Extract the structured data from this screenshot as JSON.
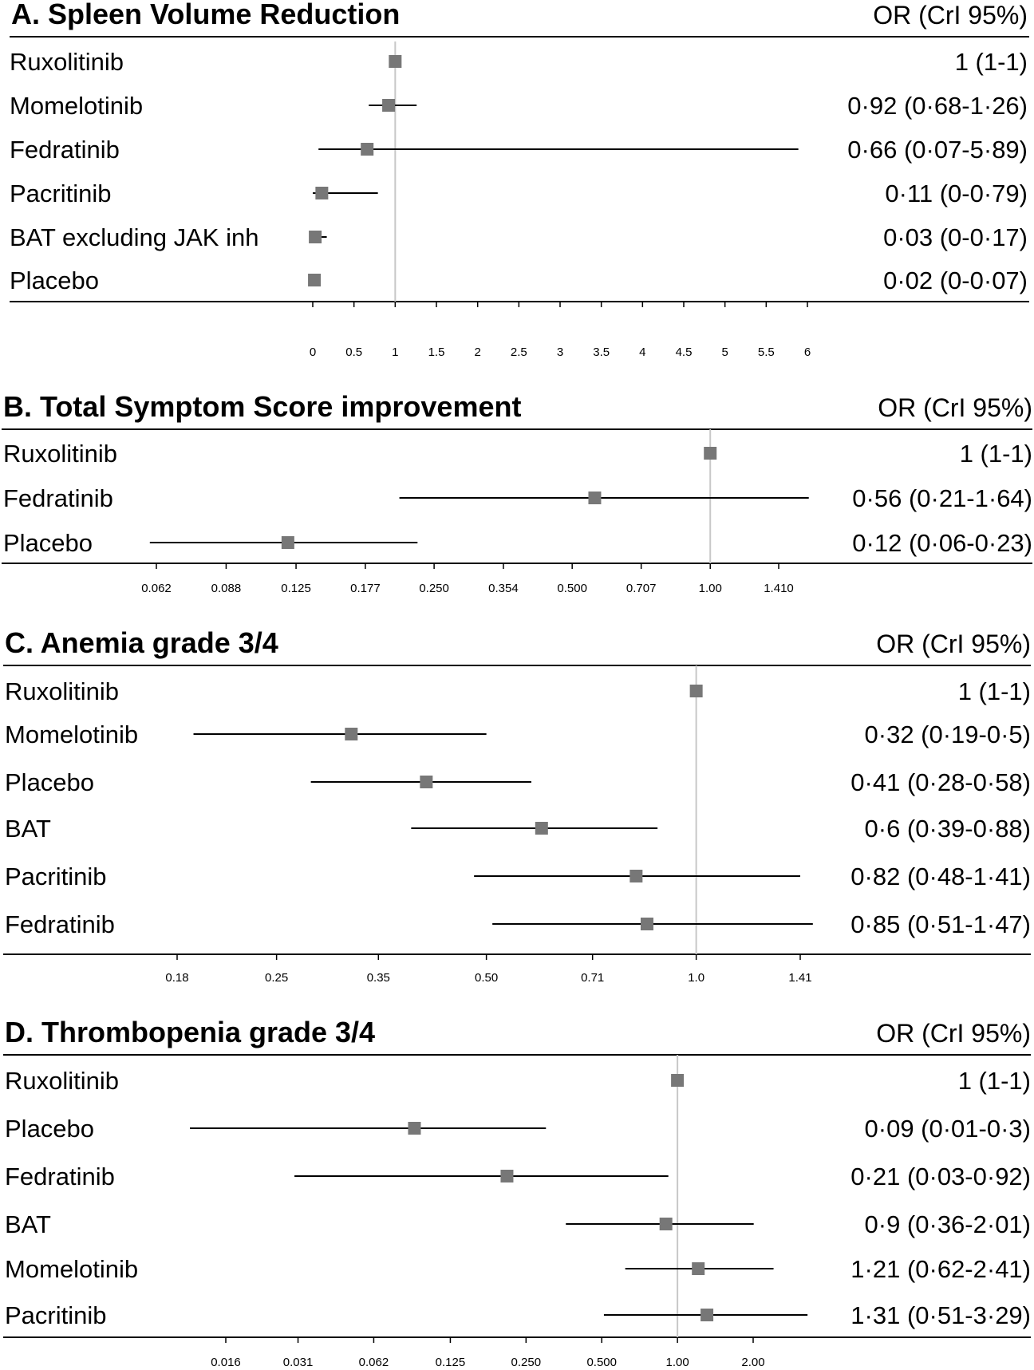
{
  "chart_data": [
    {
      "type": "forest",
      "panel_label": "A.",
      "title": "Spleen Volume Reduction",
      "or_header": "OR (CrI 95%)",
      "scale": "linear",
      "ref_value": 1,
      "xlim": [
        0,
        6
      ],
      "ticks": [
        {
          "v": 0,
          "label": "0"
        },
        {
          "v": 0.5,
          "label": "0.5"
        },
        {
          "v": 1,
          "label": "1"
        },
        {
          "v": 1.5,
          "label": "1.5"
        },
        {
          "v": 2,
          "label": "2"
        },
        {
          "v": 2.5,
          "label": "2.5"
        },
        {
          "v": 3,
          "label": "3"
        },
        {
          "v": 3.5,
          "label": "3.5"
        },
        {
          "v": 4,
          "label": "4"
        },
        {
          "v": 4.5,
          "label": "4.5"
        },
        {
          "v": 5,
          "label": "5"
        },
        {
          "v": 5.5,
          "label": "5.5"
        },
        {
          "v": 6,
          "label": "6"
        }
      ],
      "rows": [
        {
          "name": "Ruxolitinib",
          "or": 1,
          "lo": 1,
          "hi": 1,
          "text": "1 (1-1)"
        },
        {
          "name": "Momelotinib",
          "or": 0.92,
          "lo": 0.68,
          "hi": 1.26,
          "text": "0·92 (0·68-1·26)"
        },
        {
          "name": "Fedratinib",
          "or": 0.66,
          "lo": 0.07,
          "hi": 5.89,
          "text": "0·66 (0·07-5·89)"
        },
        {
          "name": "Pacritinib",
          "or": 0.11,
          "lo": 0,
          "hi": 0.79,
          "text": "0·11 (0-0·79)"
        },
        {
          "name": "BAT excluding JAK inh",
          "or": 0.03,
          "lo": 0,
          "hi": 0.17,
          "text": "0·03 (0-0·17)"
        },
        {
          "name": "Placebo",
          "or": 0.02,
          "lo": 0,
          "hi": 0.07,
          "text": "0·02 (0-0·07)"
        }
      ]
    },
    {
      "type": "forest",
      "panel_label": "B.",
      "title": "Total Symptom Score improvement",
      "or_header": "OR (CrI 95%)",
      "scale": "log",
      "ref_value": 1,
      "xlim": [
        0.062,
        1.41
      ],
      "ticks": [
        {
          "v": 0.062,
          "label": "0.062"
        },
        {
          "v": 0.088,
          "label": "0.088"
        },
        {
          "v": 0.125,
          "label": "0.125"
        },
        {
          "v": 0.177,
          "label": "0.177"
        },
        {
          "v": 0.25,
          "label": "0.250"
        },
        {
          "v": 0.354,
          "label": "0.354"
        },
        {
          "v": 0.5,
          "label": "0.500"
        },
        {
          "v": 0.707,
          "label": "0.707"
        },
        {
          "v": 1.0,
          "label": "1.00"
        },
        {
          "v": 1.41,
          "label": "1.410"
        }
      ],
      "rows": [
        {
          "name": "Ruxolitinib",
          "or": 1,
          "lo": 1,
          "hi": 1,
          "text": "1 (1-1)"
        },
        {
          "name": "Fedratinib",
          "or": 0.56,
          "lo": 0.21,
          "hi": 1.64,
          "text": "0·56 (0·21-1·64)"
        },
        {
          "name": "Placebo",
          "or": 0.12,
          "lo": 0.06,
          "hi": 0.23,
          "text": "0·12 (0·06-0·23)"
        }
      ]
    },
    {
      "type": "forest",
      "panel_label": "C.",
      "title": "Anemia grade 3/4",
      "or_header": "OR (CrI 95%)",
      "scale": "log",
      "ref_value": 1,
      "xlim": [
        0.18,
        1.41
      ],
      "ticks": [
        {
          "v": 0.18,
          "label": "0.18"
        },
        {
          "v": 0.25,
          "label": "0.25"
        },
        {
          "v": 0.35,
          "label": "0.35"
        },
        {
          "v": 0.5,
          "label": "0.50"
        },
        {
          "v": 0.71,
          "label": "0.71"
        },
        {
          "v": 1.0,
          "label": "1.0"
        },
        {
          "v": 1.41,
          "label": "1.41"
        }
      ],
      "rows": [
        {
          "name": "Ruxolitinib",
          "or": 1,
          "lo": 1,
          "hi": 1,
          "text": "1 (1-1)"
        },
        {
          "name": "Momelotinib",
          "or": 0.32,
          "lo": 0.19,
          "hi": 0.5,
          "text": "0·32 (0·19-0·5)"
        },
        {
          "name": "Placebo",
          "or": 0.41,
          "lo": 0.28,
          "hi": 0.58,
          "text": "0·41 (0·28-0·58)"
        },
        {
          "name": "BAT",
          "or": 0.6,
          "lo": 0.39,
          "hi": 0.88,
          "text": "0·6 (0·39-0·88)"
        },
        {
          "name": "Pacritinib",
          "or": 0.82,
          "lo": 0.48,
          "hi": 1.41,
          "text": "0·82 (0·48-1·41)"
        },
        {
          "name": "Fedratinib",
          "or": 0.85,
          "lo": 0.51,
          "hi": 1.47,
          "text": "0·85 (0·51-1·47)"
        }
      ]
    },
    {
      "type": "forest",
      "panel_label": "D.",
      "title": "Thrombopenia grade 3/4",
      "or_header": "OR (CrI 95%)",
      "scale": "log",
      "ref_value": 1,
      "xlim": [
        0.016,
        2.0
      ],
      "ticks": [
        {
          "v": 0.016,
          "label": "0.016"
        },
        {
          "v": 0.031,
          "label": "0.031"
        },
        {
          "v": 0.062,
          "label": "0.062"
        },
        {
          "v": 0.125,
          "label": "0.125"
        },
        {
          "v": 0.25,
          "label": "0.250"
        },
        {
          "v": 0.5,
          "label": "0.500"
        },
        {
          "v": 1.0,
          "label": "1.00"
        },
        {
          "v": 2.0,
          "label": "2.00"
        }
      ],
      "rows": [
        {
          "name": "Ruxolitinib",
          "or": 1,
          "lo": 1,
          "hi": 1,
          "text": "1 (1-1)"
        },
        {
          "name": "Placebo",
          "or": 0.09,
          "lo": 0.01,
          "hi": 0.3,
          "text": "0·09 (0·01-0·3)"
        },
        {
          "name": "Fedratinib",
          "or": 0.21,
          "lo": 0.03,
          "hi": 0.92,
          "text": "0·21 (0·03-0·92)"
        },
        {
          "name": "BAT",
          "or": 0.9,
          "lo": 0.36,
          "hi": 2.01,
          "text": "0·9 (0·36-2·01)"
        },
        {
          "name": "Momelotinib",
          "or": 1.21,
          "lo": 0.62,
          "hi": 2.41,
          "text": "1·21 (0·62-2·41)"
        },
        {
          "name": "Pacritinib",
          "or": 1.31,
          "lo": 0.51,
          "hi": 3.29,
          "text": "1·31 (0·51-3·29)"
        }
      ]
    }
  ]
}
